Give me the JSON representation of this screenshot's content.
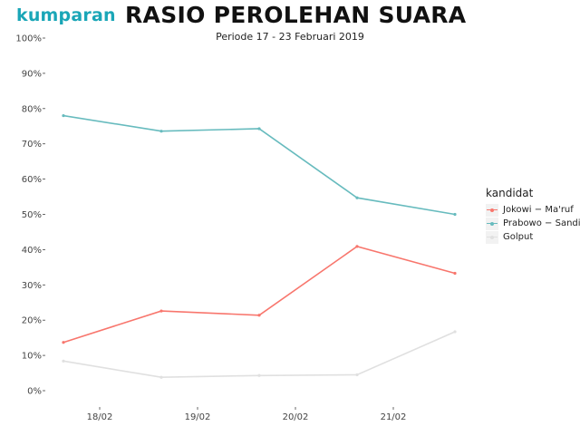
{
  "logo": "kumparan",
  "chart_data": {
    "type": "line",
    "title": "RASIO PEROLEHAN SUARA",
    "subtitle": "Periode 17 - 23 Februari 2019",
    "xlabel": "",
    "ylabel": "",
    "x_tick_labels": [
      "18/02",
      "19/02",
      "20/02",
      "21/02"
    ],
    "y_tick_labels": [
      "0%",
      "10%",
      "20%",
      "30%",
      "40%",
      "50%",
      "60%",
      "70%",
      "80%",
      "90%",
      "100%"
    ],
    "ylim": [
      0,
      100
    ],
    "grid": false,
    "legend_position": "right",
    "legend_title": "kandidat",
    "series": [
      {
        "name": "Jokowi − Ma'ruf",
        "color": "#f8766d",
        "points": [
          [
            0,
            13.7
          ],
          [
            1,
            22.6
          ],
          [
            2,
            21.4
          ],
          [
            3,
            40.9
          ],
          [
            4,
            33.3
          ]
        ]
      },
      {
        "name": "Prabowo − Sandi",
        "color": "#67bbbe",
        "points": [
          [
            0,
            78.0
          ],
          [
            1,
            73.6
          ],
          [
            2,
            74.3
          ],
          [
            3,
            54.7
          ],
          [
            4,
            50.0
          ]
        ]
      },
      {
        "name": "Golput",
        "color": "#e0e0e0",
        "points": [
          [
            0,
            8.4
          ],
          [
            1,
            3.8
          ],
          [
            2,
            4.3
          ],
          [
            3,
            4.5
          ],
          [
            4,
            16.7
          ]
        ]
      }
    ]
  }
}
